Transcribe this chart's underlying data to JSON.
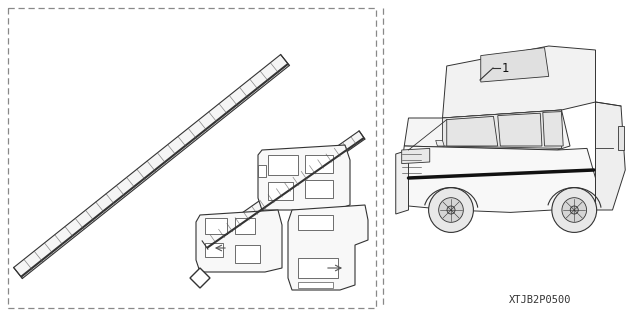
{
  "bg_color": "#ffffff",
  "border_color": "#888888",
  "part_number_label": "1",
  "part_code": "XTJB2P0500",
  "fig_width": 6.4,
  "fig_height": 3.19,
  "dpi": 100,
  "line_color": "#333333",
  "hatch_color": "#555555"
}
